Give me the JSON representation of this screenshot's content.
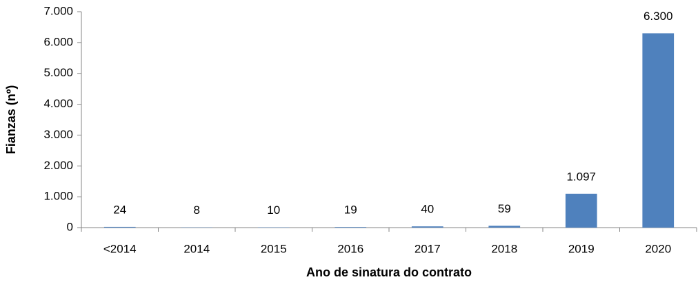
{
  "chart_data": {
    "type": "bar",
    "xlabel": "Ano de sinatura do contrato",
    "ylabel": "Fianzas (nº)",
    "categories": [
      "<2014",
      "2014",
      "2015",
      "2016",
      "2017",
      "2018",
      "2019",
      "2020"
    ],
    "values": [
      24,
      8,
      10,
      19,
      40,
      59,
      1097,
      6300
    ],
    "value_labels": [
      "24",
      "8",
      "10",
      "19",
      "40",
      "59",
      "1.097",
      "6.300"
    ],
    "color": "#4f81bd",
    "ylim": [
      0,
      7000
    ],
    "yticks": [
      0,
      {
        "value": 1000,
        "label": "1.000"
      },
      {
        "value": 2000,
        "label": "2.000"
      },
      {
        "value": 3000,
        "label": "3.000"
      },
      {
        "value": 4000,
        "label": "4.000"
      },
      {
        "value": 5000,
        "label": "5.000"
      },
      {
        "value": 6000,
        "label": "6.000"
      },
      {
        "value": 7000,
        "label": "7.000"
      }
    ],
    "grid": false
  }
}
